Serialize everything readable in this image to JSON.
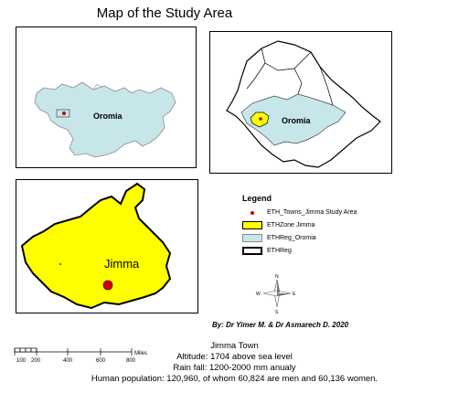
{
  "title": "Map of the Study Area",
  "inset_left": {
    "region_label": "Oromia"
  },
  "inset_right": {
    "region_label": "Oromia"
  },
  "main_map": {
    "town_label": "Jimma"
  },
  "legend": {
    "title": "Legend",
    "items": [
      {
        "label": "ETH_Towns_Jimma Study Area",
        "symbol": "red-dot",
        "color": "#c00000"
      },
      {
        "label": "ETHZone Jimma",
        "symbol": "fill",
        "color": "#ffff00"
      },
      {
        "label": "ETHReg_Oromia",
        "symbol": "fill",
        "color": "#c7e6ea"
      },
      {
        "label": "ETHReg",
        "symbol": "outline",
        "color": "#000000"
      }
    ]
  },
  "north_arrow": {
    "n": "N",
    "s": "S",
    "e": "E",
    "w": "W"
  },
  "scale_bar": {
    "ticks": [
      "100",
      "200",
      "400",
      "600",
      "800"
    ],
    "unit": "Miles"
  },
  "byline": "By: Dr Yimer M. & Dr Asmarech D. 2020",
  "info": {
    "town": "Jimma Town",
    "altitude": "Altitude: 1704 above sea level",
    "rainfall": "Rain fall: 1200-2000 mm anualy",
    "population": "Human population: 120,960, of whom 60,824 are men and 60,136 women."
  },
  "colors": {
    "oromia_fill": "#c7e6ea",
    "jimma_fill": "#ffff00",
    "town_dot": "#c00000",
    "outline": "#000000"
  }
}
